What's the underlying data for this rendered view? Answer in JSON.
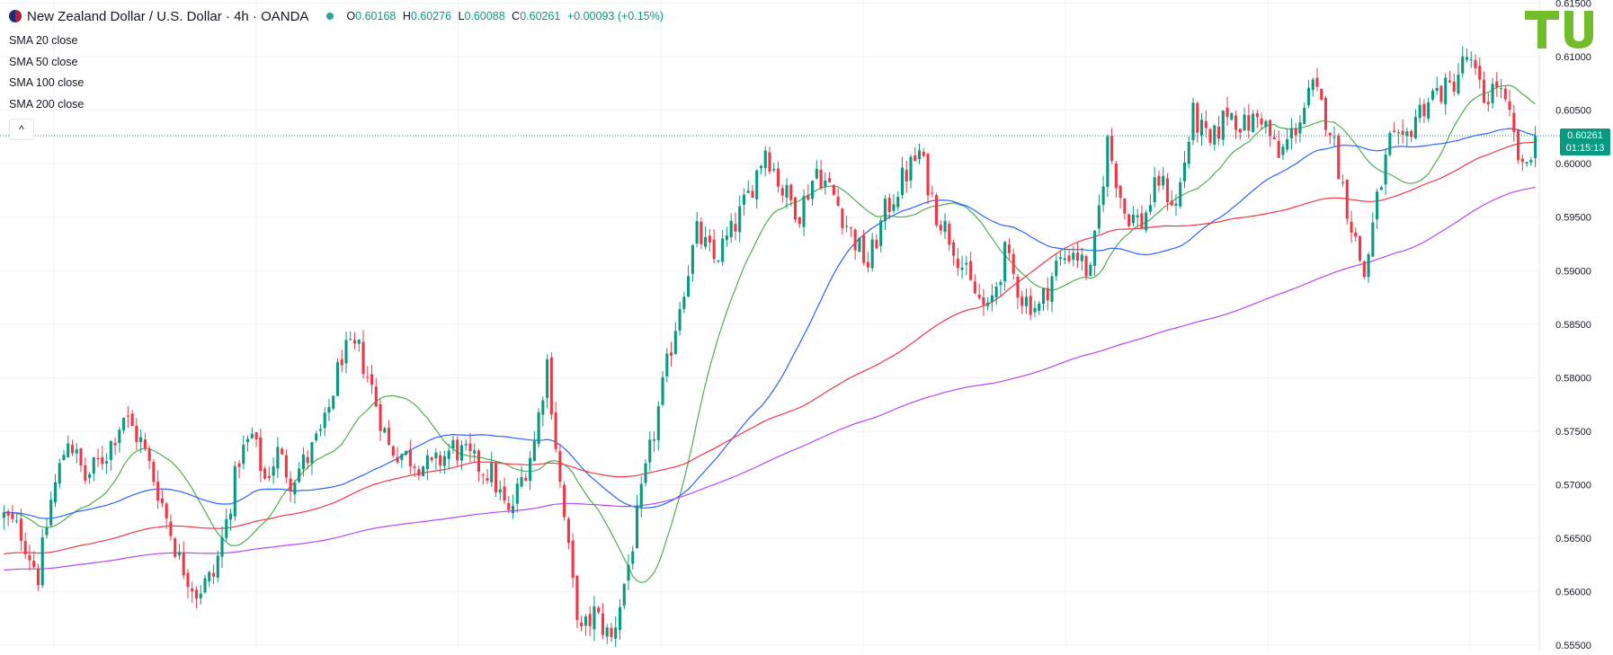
{
  "header": {
    "symbol_title": "New Zealand Dollar / U.S. Dollar · 4h · OANDA",
    "ohlc": {
      "o_label": "O",
      "o": "0.60168",
      "h_label": "H",
      "h": "0.60276",
      "l_label": "L",
      "l": "0.60088",
      "c_label": "C",
      "c": "0.60261",
      "change": "+0.00093 (+0.15%)"
    }
  },
  "indicators": [
    "SMA 20 close",
    "SMA 50 close",
    "SMA 100 close",
    "SMA 200 close"
  ],
  "collapse_glyph": "^",
  "last_price": {
    "value": "0.60261",
    "countdown": "01:15:13",
    "color": "#089981"
  },
  "colors": {
    "up": "#089981",
    "down": "#f23645",
    "sma20": "#4caf50",
    "sma50": "#2962ff",
    "sma100": "#f23645",
    "sma200": "#b745f7",
    "grid": "#f0f3fa",
    "axis_text": "#131722",
    "logo": "#71bd2a"
  },
  "chart_data": {
    "type": "candlestick",
    "title": "New Zealand Dollar / U.S. Dollar · 4h · OANDA",
    "y_axis": {
      "position": "right",
      "ticks": [
        "0.61500",
        "0.61000",
        "0.60500",
        "0.60000",
        "0.59500",
        "0.59000",
        "0.58500",
        "0.58000",
        "0.57500",
        "0.57000",
        "0.56500",
        "0.56000",
        "0.55500"
      ],
      "ylim": [
        0.5545,
        0.6153
      ]
    },
    "grid": true,
    "close_path": [
      [
        0,
        0.567
      ],
      [
        4,
        0.5655
      ],
      [
        8,
        0.5615
      ],
      [
        11,
        0.5685
      ],
      [
        15,
        0.5745
      ],
      [
        19,
        0.5705
      ],
      [
        24,
        0.573
      ],
      [
        28,
        0.5765
      ],
      [
        32,
        0.574
      ],
      [
        36,
        0.5695
      ],
      [
        41,
        0.563
      ],
      [
        45,
        0.56
      ],
      [
        49,
        0.5615
      ],
      [
        52,
        0.5665
      ],
      [
        55,
        0.5725
      ],
      [
        58,
        0.5745
      ],
      [
        61,
        0.5705
      ],
      [
        64,
        0.573
      ],
      [
        67,
        0.5705
      ],
      [
        71,
        0.5725
      ],
      [
        75,
        0.5755
      ],
      [
        79,
        0.5822
      ],
      [
        83,
        0.5825
      ],
      [
        86,
        0.579
      ],
      [
        90,
        0.5735
      ],
      [
        95,
        0.5725
      ],
      [
        100,
        0.5715
      ],
      [
        105,
        0.5735
      ],
      [
        110,
        0.572
      ],
      [
        114,
        0.571
      ],
      [
        118,
        0.567
      ],
      [
        121,
        0.5705
      ],
      [
        124,
        0.574
      ],
      [
        127,
        0.5815
      ],
      [
        130,
        0.57
      ],
      [
        133,
        0.5605
      ],
      [
        135,
        0.556
      ],
      [
        138,
        0.558
      ],
      [
        142,
        0.5555
      ],
      [
        146,
        0.5625
      ],
      [
        150,
        0.571
      ],
      [
        154,
        0.579
      ],
      [
        158,
        0.587
      ],
      [
        162,
        0.5935
      ],
      [
        166,
        0.591
      ],
      [
        170,
        0.5935
      ],
      [
        174,
        0.597
      ],
      [
        178,
        0.6015
      ],
      [
        182,
        0.5975
      ],
      [
        186,
        0.5955
      ],
      [
        190,
        0.5995
      ],
      [
        194,
        0.597
      ],
      [
        198,
        0.5935
      ],
      [
        202,
        0.5905
      ],
      [
        206,
        0.5955
      ],
      [
        210,
        0.5985
      ],
      [
        214,
        0.601
      ],
      [
        218,
        0.5955
      ],
      [
        222,
        0.5925
      ],
      [
        226,
        0.5885
      ],
      [
        230,
        0.586
      ],
      [
        234,
        0.5915
      ],
      [
        238,
        0.5875
      ],
      [
        242,
        0.5865
      ],
      [
        246,
        0.5905
      ],
      [
        250,
        0.592
      ],
      [
        254,
        0.5895
      ],
      [
        258,
        0.602
      ],
      [
        262,
        0.5955
      ],
      [
        266,
        0.5945
      ],
      [
        270,
        0.5985
      ],
      [
        274,
        0.596
      ],
      [
        278,
        0.6045
      ],
      [
        282,
        0.6015
      ],
      [
        286,
        0.605
      ],
      [
        290,
        0.6035
      ],
      [
        294,
        0.6045
      ],
      [
        298,
        0.6005
      ],
      [
        302,
        0.6035
      ],
      [
        306,
        0.607
      ],
      [
        310,
        0.6035
      ],
      [
        314,
        0.596
      ],
      [
        318,
        0.5895
      ],
      [
        321,
        0.5965
      ],
      [
        324,
        0.602
      ],
      [
        327,
        0.6015
      ],
      [
        330,
        0.6045
      ],
      [
        334,
        0.6065
      ],
      [
        338,
        0.607
      ],
      [
        342,
        0.61
      ],
      [
        346,
        0.606
      ],
      [
        349,
        0.6075
      ],
      [
        352,
        0.604
      ],
      [
        355,
        0.599
      ],
      [
        358,
        0.6026
      ]
    ],
    "n_candles": 359,
    "last_close": 0.60261,
    "series": [
      {
        "name": "SMA 20 close",
        "period": 20
      },
      {
        "name": "SMA 50 close",
        "period": 50
      },
      {
        "name": "SMA 100 close",
        "period": 100
      },
      {
        "name": "SMA 200 close",
        "period": 200
      }
    ],
    "warmup": {
      "sma100": 0.5635,
      "sma200": 0.562
    }
  }
}
